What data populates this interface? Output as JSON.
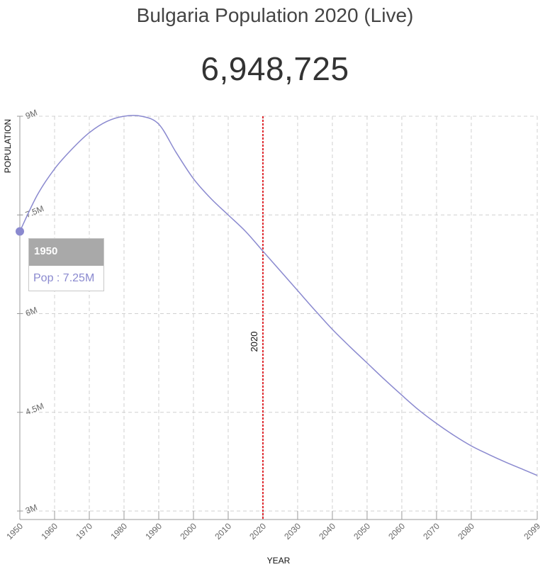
{
  "page": {
    "title": "Bulgaria Population 2020 (Live)",
    "counter": "6,948,725"
  },
  "tooltip": {
    "year": "1950",
    "text": "Pop : 7.25M"
  },
  "chart_data": {
    "type": "line",
    "title": "Bulgaria Population 2020 (Live)",
    "xlabel": "YEAR",
    "ylabel": "POPULATION",
    "xlim": [
      1950,
      2099
    ],
    "ylim": [
      3000000,
      9000000
    ],
    "x_ticks": [
      1950,
      1960,
      1970,
      1980,
      1990,
      2000,
      2010,
      2020,
      2030,
      2040,
      2050,
      2060,
      2070,
      2080,
      2099
    ],
    "y_ticks": [
      {
        "value": 3000000,
        "label": "3M"
      },
      {
        "value": 4500000,
        "label": "4.5M"
      },
      {
        "value": 6000000,
        "label": "6M"
      },
      {
        "value": 7500000,
        "label": "7.5M"
      },
      {
        "value": 9000000,
        "label": "9M"
      }
    ],
    "grid": true,
    "current_year_marker": {
      "x": 2020,
      "label": "2020",
      "color": "#e0282e"
    },
    "series": [
      {
        "color": "#8a89cf",
        "x": [
          1950,
          1955,
          1960,
          1965,
          1970,
          1975,
          1980,
          1985,
          1990,
          1995,
          2000,
          2005,
          2010,
          2015,
          2020,
          2025,
          2030,
          2035,
          2040,
          2045,
          2050,
          2055,
          2060,
          2065,
          2070,
          2075,
          2080,
          2085,
          2090,
          2095,
          2099
        ],
        "y": [
          7250000,
          7800000,
          8200000,
          8500000,
          8750000,
          8920000,
          9000000,
          9000000,
          8880000,
          8450000,
          8050000,
          7750000,
          7500000,
          7250000,
          6950000,
          6650000,
          6350000,
          6050000,
          5760000,
          5500000,
          5250000,
          5000000,
          4760000,
          4530000,
          4330000,
          4150000,
          3990000,
          3860000,
          3740000,
          3630000,
          3540000
        ]
      }
    ],
    "highlight_point": {
      "x": 1950,
      "y": 7250000
    }
  },
  "colors": {
    "line": "#8a89cf",
    "marker": "#e0282e",
    "grid": "#d0d0d0"
  }
}
